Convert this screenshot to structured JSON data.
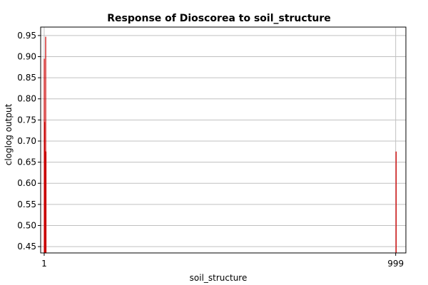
{
  "chart_data": {
    "type": "bar",
    "title": "Response of Dioscorea to soil_structure",
    "xlabel": "soil_structure",
    "ylabel": "cloglog output",
    "xlim": [
      -9,
      1028
    ],
    "ylim": [
      0.435,
      0.97
    ],
    "yticks": [
      0.45,
      0.5,
      0.55,
      0.6,
      0.65,
      0.7,
      0.75,
      0.8,
      0.85,
      0.9,
      0.95
    ],
    "ytick_labels": [
      "0.45",
      "0.50",
      "0.55",
      "0.60",
      "0.65",
      "0.70",
      "0.75",
      "0.80",
      "0.85",
      "0.90",
      "0.95"
    ],
    "xticks": [
      1,
      999
    ],
    "xtick_labels": [
      "1",
      "999"
    ],
    "grid": true,
    "bar_color": "#ff0000",
    "line_color": "#c00000",
    "grid_color": "#c0c0c0",
    "bars": [
      {
        "x": 0,
        "y": 0.895,
        "width": 1
      },
      {
        "x": 1,
        "y": 0.745,
        "width": 1
      },
      {
        "x": 2,
        "y": 0.675,
        "width": 1
      },
      {
        "x": 3,
        "y": 0.675,
        "width": 1
      },
      {
        "x": 4,
        "y": 0.947,
        "width": 1
      },
      {
        "x": 5,
        "y": 0.675,
        "width": 1
      },
      {
        "x": 999,
        "y": 0.675,
        "width": 1
      }
    ]
  }
}
